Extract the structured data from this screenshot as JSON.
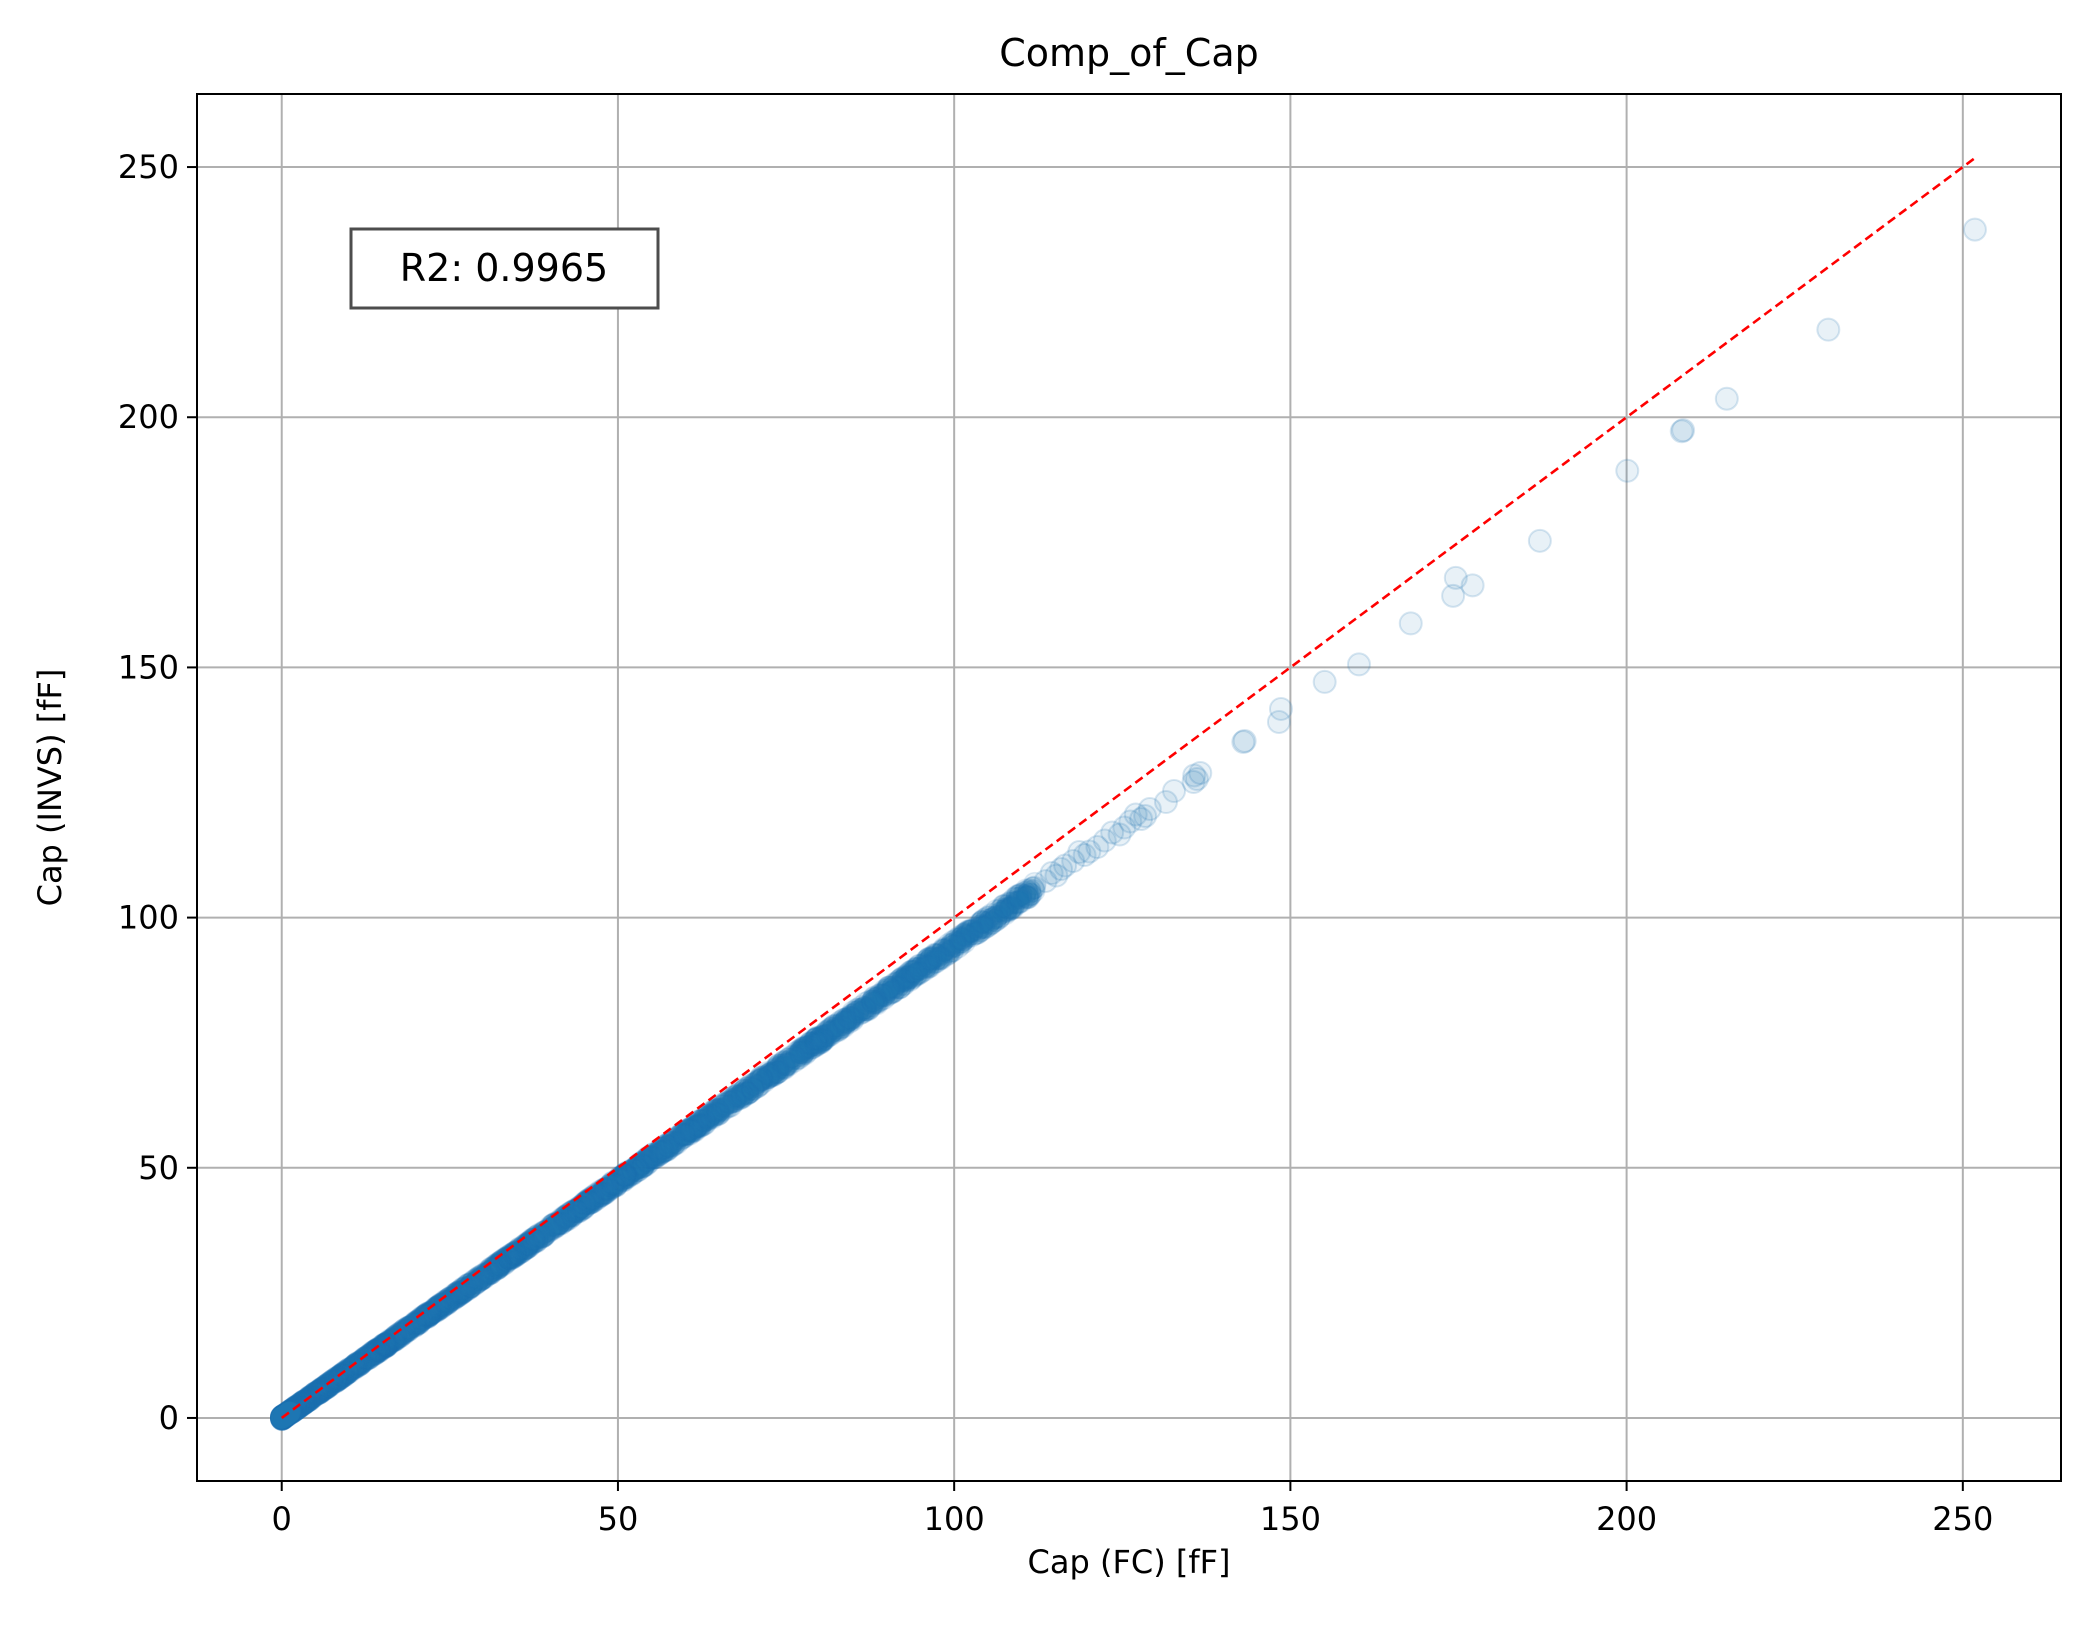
{
  "chart_data": {
    "type": "scatter",
    "title": "Comp_of_Cap",
    "xlabel": "Cap (FC) [fF]",
    "ylabel": "Cap (INVS) [fF]",
    "xlim": [
      -12.6,
      264.6
    ],
    "ylim": [
      -12.6,
      264.6
    ],
    "xticks": [
      0,
      50,
      100,
      150,
      200,
      250
    ],
    "yticks": [
      0,
      50,
      100,
      150,
      200,
      250
    ],
    "grid": true,
    "annotation": "R2: 0.9965",
    "reference_line": {
      "x": [
        0,
        251.8
      ],
      "y": [
        0,
        251.8
      ],
      "color": "#ff0000",
      "style": "dashed"
    },
    "marker_color": "#1f77b4",
    "marker_alpha": 0.1,
    "dense_band": {
      "x_start": 0,
      "x_end": 112,
      "slope": 0.945,
      "count": 2400
    },
    "series": [
      {
        "x": [
          251.8,
          230.0,
          214.9,
          208.4,
          208.2,
          200.1,
          187.1,
          177.1,
          174.6,
          174.2,
          167.9,
          160.2,
          155.1,
          148.6,
          148.3,
          143.2,
          143.0,
          136.6,
          136.1,
          135.7,
          135.6,
          132.7,
          131.5,
          129.1,
          128.4,
          127.8,
          127.0,
          126.2,
          125.3,
          124.6,
          123.5,
          122.4,
          121.3,
          120.1,
          119.4,
          118.6,
          117.7,
          116.5,
          115.9,
          115.2,
          114.5,
          113.6
        ],
        "y": [
          237.5,
          217.5,
          203.7,
          197.4,
          197.2,
          189.3,
          175.3,
          166.4,
          167.9,
          164.3,
          158.8,
          150.6,
          147.1,
          141.7,
          139.1,
          135.3,
          135.1,
          128.9,
          127.7,
          128.4,
          127.1,
          125.3,
          123.1,
          121.7,
          120.3,
          119.7,
          120.6,
          119.2,
          118.0,
          116.6,
          117.0,
          115.4,
          114.1,
          113.2,
          112.5,
          113.1,
          111.3,
          110.4,
          109.7,
          108.4,
          108.9,
          107.3
        ]
      }
    ]
  }
}
